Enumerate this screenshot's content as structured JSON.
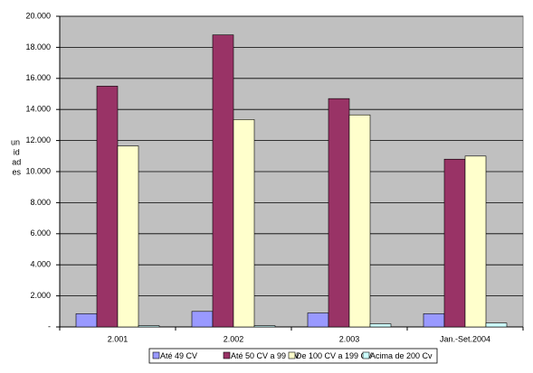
{
  "chart_data": {
    "type": "bar",
    "y_label": "un id ad es",
    "categories": [
      "2.001",
      "2.002",
      "2.003",
      "Jan.-Set.2004"
    ],
    "series": [
      {
        "name": "Até 49 CV",
        "color": "#9999ff",
        "values": [
          850,
          1000,
          900,
          850
        ]
      },
      {
        "name": "Até 50 CV a 99 CV",
        "color": "#993366",
        "values": [
          15500,
          18800,
          14700,
          10800
        ]
      },
      {
        "name": "De 100 CV a 199 CV",
        "color": "#ffffcc",
        "values": [
          11650,
          13350,
          13650,
          11000
        ]
      },
      {
        "name": "Acima de 200 Cv",
        "color": "#ccffff",
        "values": [
          80,
          80,
          200,
          250
        ]
      }
    ],
    "ylim": [
      0,
      20000
    ],
    "yticks": [
      {
        "value": 0,
        "label": "-"
      },
      {
        "value": 2000,
        "label": "2.000"
      },
      {
        "value": 4000,
        "label": "4.000"
      },
      {
        "value": 6000,
        "label": "6.000"
      },
      {
        "value": 8000,
        "label": "8.000"
      },
      {
        "value": 10000,
        "label": "10.000"
      },
      {
        "value": 12000,
        "label": "12.000"
      },
      {
        "value": 14000,
        "label": "14.000"
      },
      {
        "value": 16000,
        "label": "16.000"
      },
      {
        "value": 18000,
        "label": "18.000"
      },
      {
        "value": 20000,
        "label": "20.000"
      }
    ],
    "grid": true,
    "plot_background": "#c0c0c0",
    "legend": "bottom"
  }
}
